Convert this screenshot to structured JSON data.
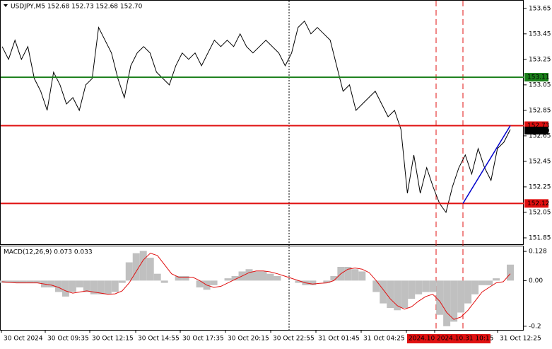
{
  "chart_data": [
    {
      "type": "line",
      "title": "USDJPY,M5  152.68 152.73 152.68 152.70",
      "color": "#000000",
      "values": [
        153.35,
        153.25,
        153.4,
        153.25,
        153.35,
        153.1,
        153.0,
        152.85,
        153.15,
        153.05,
        152.9,
        152.95,
        152.85,
        153.05,
        153.1,
        153.5,
        153.4,
        153.3,
        153.1,
        152.95,
        153.2,
        153.3,
        153.35,
        153.3,
        153.15,
        153.1,
        153.05,
        153.2,
        153.3,
        153.25,
        153.3,
        153.2,
        153.3,
        153.4,
        153.35,
        153.4,
        153.35,
        153.45,
        153.35,
        153.3,
        153.35,
        153.4,
        153.35,
        153.3,
        153.2,
        153.3,
        153.5,
        153.55,
        153.45,
        153.5,
        153.45,
        153.4,
        153.2,
        153.0,
        153.05,
        152.85,
        152.9,
        152.95,
        153.0,
        152.9,
        152.8,
        152.85,
        152.7,
        152.2,
        152.5,
        152.2,
        152.4,
        152.25,
        152.12,
        152.05,
        152.25,
        152.4,
        152.5,
        152.35,
        152.55,
        152.4,
        152.3,
        152.55,
        152.6,
        152.7
      ],
      "ylim": [
        151.8,
        153.71
      ],
      "yticks": [
        153.65,
        153.45,
        153.25,
        153.05,
        152.85,
        152.65,
        152.45,
        152.25,
        152.05,
        151.85
      ],
      "levels": [
        {
          "value": 153.11,
          "color": "#1a7f1a"
        },
        {
          "value": 152.73,
          "color": "#e01010"
        },
        {
          "value": 152.12,
          "color": "#e01010"
        }
      ],
      "current": {
        "value": 152.7,
        "label": "152.70"
      },
      "trend_color": "#0000cc",
      "time_labels": [
        "30 Oct 2024",
        "30 Oct 09:35",
        "30 Oct 12:15",
        "30 Oct 14:55",
        "30 Oct 17:35",
        "30 Oct 20:15",
        "30 Oct 22:55",
        "31 Oct 01:45",
        "31 Oct 04:25",
        "2024.10",
        "2024.10.31 10:15",
        "31 Oct 12:25"
      ]
    },
    {
      "type": "bar",
      "title": "MACD(12,26,9) 0.073 0.033",
      "color": "#c0c0c0",
      "signal_color": "#e01010",
      "values": [
        -0.01,
        -0.01,
        -0.01,
        -0.01,
        -0.01,
        -0.01,
        -0.03,
        -0.03,
        -0.05,
        -0.07,
        -0.05,
        -0.03,
        -0.05,
        -0.06,
        -0.06,
        -0.06,
        -0.05,
        -0.01,
        0.08,
        0.12,
        0.13,
        0.1,
        0.03,
        -0.01,
        0.0,
        0.02,
        0.02,
        0.0,
        -0.03,
        -0.04,
        -0.02,
        0.0,
        0.01,
        0.02,
        0.04,
        0.05,
        0.04,
        0.04,
        0.03,
        0.02,
        0.0,
        0.0,
        -0.01,
        -0.02,
        -0.02,
        0.0,
        -0.01,
        0.02,
        0.06,
        0.06,
        0.05,
        0.04,
        0.0,
        -0.05,
        -0.1,
        -0.12,
        -0.13,
        -0.12,
        -0.08,
        -0.06,
        -0.05,
        -0.05,
        -0.15,
        -0.2,
        -0.18,
        -0.14,
        -0.1,
        -0.06,
        -0.02,
        -0.02,
        0.01,
        0.0,
        0.07
      ],
      "signal": [
        -0.005,
        -0.008,
        -0.01,
        -0.01,
        -0.01,
        -0.01,
        -0.015,
        -0.02,
        -0.03,
        -0.045,
        -0.055,
        -0.05,
        -0.045,
        -0.05,
        -0.055,
        -0.06,
        -0.058,
        -0.045,
        -0.01,
        0.04,
        0.09,
        0.12,
        0.11,
        0.07,
        0.03,
        0.015,
        0.015,
        0.015,
        0.0,
        -0.02,
        -0.03,
        -0.025,
        -0.01,
        0.005,
        0.02,
        0.035,
        0.042,
        0.042,
        0.038,
        0.03,
        0.02,
        0.01,
        0.0,
        -0.01,
        -0.015,
        -0.012,
        -0.01,
        0.0,
        0.03,
        0.05,
        0.055,
        0.05,
        0.035,
        0.0,
        -0.04,
        -0.08,
        -0.11,
        -0.125,
        -0.115,
        -0.09,
        -0.07,
        -0.06,
        -0.09,
        -0.14,
        -0.17,
        -0.16,
        -0.13,
        -0.09,
        -0.05,
        -0.03,
        -0.01,
        -0.005,
        0.03
      ],
      "ylim": [
        -0.216,
        0.15
      ],
      "yticks": [
        0.128,
        {
          "value": 0,
          "label": "0.00"
        },
        -0.2
      ]
    }
  ]
}
